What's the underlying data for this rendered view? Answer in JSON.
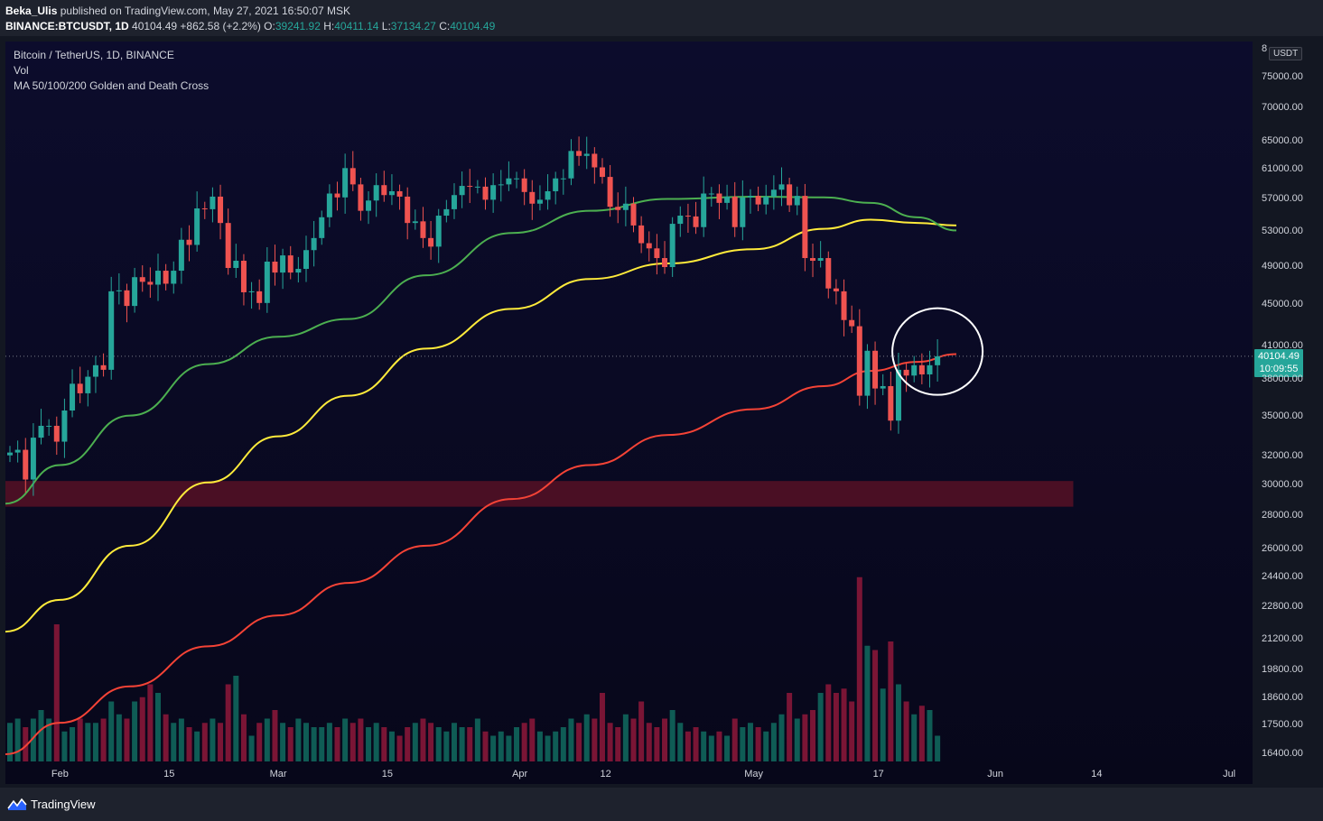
{
  "header": {
    "author": "Beka_Ulis",
    "published_text": "published on TradingView.com, May 27, 2021 16:50:07 MSK",
    "symbol": "BINANCE:BTCUSDT, 1D",
    "last": "40104.49",
    "change": "+862.58 (+2.2%)",
    "o_label": "O:",
    "o_value": "39241.92",
    "h_label": "H:",
    "h_value": "40411.14",
    "l_label": "L:",
    "l_value": "37134.27",
    "c_label": "C:",
    "c_value": "40104.49"
  },
  "legend": {
    "title": "Bitcoin / TetherUS, 1D, BINANCE",
    "vol": "Vol",
    "ma": "MA 50/100/200 Golden and Death Cross"
  },
  "price_axis": {
    "unit": "USDT",
    "top_cut_label": "8",
    "current_price": "40104.49",
    "countdown": "10:09:55"
  },
  "colors": {
    "up": "#26a69a",
    "down": "#ef5350",
    "vol_up": "#0f5c55",
    "vol_down": "#7a1535",
    "ma50": "#4caf50",
    "ma100": "#ffeb3b",
    "ma200": "#f44336",
    "support_zone": "#4a0f24"
  },
  "chart_data": {
    "type": "candlestick",
    "symbol": "BINANCE:BTCUSDT",
    "interval": "1D",
    "y_scale": "log",
    "ylim": [
      14000,
      85000
    ],
    "y_ticks": [
      "75000.00",
      "70000.00",
      "65000.00",
      "61000.00",
      "57000.00",
      "53000.00",
      "49000.00",
      "45000.00",
      "41000.00",
      "38000.00",
      "35000.00",
      "32000.00",
      "30000.00",
      "28000.00",
      "26000.00",
      "24400.00",
      "22800.00",
      "21200.00",
      "19800.00",
      "18600.00",
      "17500.00",
      "16400.00"
    ],
    "x_range": [
      "2021-01-25",
      "2021-07-04"
    ],
    "x_ticks": [
      {
        "date": "2021-02-01",
        "label": "Feb"
      },
      {
        "date": "2021-02-15",
        "label": "15"
      },
      {
        "date": "2021-03-01",
        "label": "Mar"
      },
      {
        "date": "2021-03-15",
        "label": "15"
      },
      {
        "date": "2021-04-01",
        "label": "Apr"
      },
      {
        "date": "2021-04-12",
        "label": "12"
      },
      {
        "date": "2021-05-01",
        "label": "May"
      },
      {
        "date": "2021-05-17",
        "label": "17"
      },
      {
        "date": "2021-06-01",
        "label": "Jun"
      },
      {
        "date": "2021-06-14",
        "label": "14"
      },
      {
        "date": "2021-07-01",
        "label": "Jul"
      }
    ],
    "start_date": "2021-01-25",
    "closes": [
      32300,
      32500,
      30400,
      33400,
      34300,
      34300,
      33100,
      35500,
      37700,
      36900,
      38300,
      39300,
      38900,
      46400,
      46500,
      44900,
      47900,
      47400,
      47100,
      48600,
      47200,
      48600,
      52100,
      51500,
      55900,
      55800,
      57400,
      54100,
      48900,
      49700,
      46300,
      46400,
      45200,
      49600,
      48400,
      50300,
      48400,
      48800,
      50900,
      52300,
      54800,
      57800,
      57300,
      61200,
      59000,
      55600,
      56900,
      58900,
      57600,
      58100,
      57400,
      54100,
      54300,
      52300,
      51300,
      55000,
      55800,
      57600,
      58800,
      58700,
      58700,
      57000,
      58900,
      59000,
      59800,
      59800,
      58000,
      56500,
      57000,
      58100,
      59800,
      59800,
      63600,
      62900,
      63200,
      61300,
      60000,
      56100,
      55700,
      56500,
      53800,
      51700,
      51100,
      50000,
      49000,
      54000,
      55000,
      54900,
      53600,
      57800,
      57800,
      56600,
      57400,
      53600,
      57300,
      57500,
      56400,
      57400,
      58300,
      59000,
      56300,
      57500,
      50000,
      49700,
      50000,
      46700,
      46400,
      43500,
      42900,
      36700,
      40600,
      37300,
      37500,
      34700,
      38900,
      38400,
      39300,
      38500,
      39300,
      40100
    ],
    "opens_rule": "each day's open equals the previous day's close; first open 32100",
    "ma": [
      {
        "name": "MA 50",
        "period": 50
      },
      {
        "name": "MA 100",
        "period": 100
      },
      {
        "name": "MA 200",
        "period": 200
      }
    ],
    "ma_curves": {
      "ma50": {
        "dates": [
          "2021-01-25",
          "2021-02-01",
          "2021-02-10",
          "2021-02-20",
          "2021-03-01",
          "2021-03-10",
          "2021-03-20",
          "2021-03-31",
          "2021-04-10",
          "2021-04-20",
          "2021-05-01",
          "2021-05-10",
          "2021-05-16",
          "2021-05-22",
          "2021-05-27"
        ],
        "values": [
          28800,
          31400,
          35100,
          39400,
          41900,
          43600,
          48100,
          52900,
          55600,
          57100,
          57400,
          57300,
          56600,
          54800,
          53200
        ]
      },
      "ma100": {
        "dates": [
          "2021-01-25",
          "2021-02-01",
          "2021-02-10",
          "2021-02-20",
          "2021-03-01",
          "2021-03-10",
          "2021-03-20",
          "2021-03-31",
          "2021-04-10",
          "2021-04-20",
          "2021-05-01",
          "2021-05-10",
          "2021-05-16",
          "2021-05-22",
          "2021-05-27"
        ],
        "values": [
          21600,
          23200,
          26200,
          30200,
          33500,
          36700,
          40800,
          44600,
          47700,
          49400,
          51000,
          53400,
          54500,
          54100,
          53800
        ]
      },
      "ma200": {
        "dates": [
          "2021-01-25",
          "2021-02-01",
          "2021-02-10",
          "2021-02-20",
          "2021-03-01",
          "2021-03-10",
          "2021-03-20",
          "2021-03-31",
          "2021-04-10",
          "2021-04-20",
          "2021-05-01",
          "2021-05-10",
          "2021-05-16",
          "2021-05-22",
          "2021-05-27"
        ],
        "values": [
          16400,
          17600,
          19100,
          20900,
          22400,
          24100,
          26200,
          29100,
          31400,
          33600,
          35600,
          37500,
          38800,
          39600,
          40300
        ]
      }
    },
    "volume_shown_as_bars": "relative volume per day, same color as candle direction",
    "volume_relative": [
      0.45,
      0.5,
      0.4,
      0.5,
      0.6,
      0.5,
      1.6,
      0.35,
      0.4,
      0.5,
      0.45,
      0.45,
      0.5,
      0.7,
      0.55,
      0.5,
      0.7,
      0.75,
      0.9,
      0.8,
      0.55,
      0.45,
      0.5,
      0.4,
      0.35,
      0.45,
      0.5,
      0.45,
      0.9,
      1.0,
      0.55,
      0.3,
      0.45,
      0.5,
      0.6,
      0.45,
      0.4,
      0.5,
      0.45,
      0.4,
      0.4,
      0.45,
      0.4,
      0.5,
      0.45,
      0.5,
      0.4,
      0.45,
      0.4,
      0.35,
      0.3,
      0.4,
      0.45,
      0.5,
      0.45,
      0.4,
      0.35,
      0.45,
      0.4,
      0.4,
      0.5,
      0.35,
      0.3,
      0.35,
      0.3,
      0.4,
      0.45,
      0.5,
      0.35,
      0.3,
      0.35,
      0.4,
      0.5,
      0.45,
      0.55,
      0.5,
      0.8,
      0.45,
      0.4,
      0.55,
      0.5,
      0.7,
      0.45,
      0.4,
      0.5,
      0.6,
      0.45,
      0.35,
      0.4,
      0.35,
      0.3,
      0.35,
      0.3,
      0.5,
      0.4,
      0.45,
      0.4,
      0.35,
      0.45,
      0.55,
      0.8,
      0.5,
      0.55,
      0.6,
      0.8,
      0.9,
      0.8,
      0.85,
      0.7,
      2.15,
      1.35,
      1.3,
      0.85,
      1.4,
      0.9,
      0.7,
      0.55,
      0.65,
      0.6,
      0.3
    ],
    "support_zone": {
      "from": 28600,
      "to": 30300,
      "x_start": "2021-01-25",
      "x_end": "2021-06-11"
    },
    "annotations": [
      {
        "type": "circle",
        "center_date": "2021-05-24",
        "center_price": 40200,
        "note": "circle drawn around latest candles at MA 200"
      }
    ],
    "last_price_line": 40104.49
  },
  "footer": {
    "brand": "TradingView"
  }
}
